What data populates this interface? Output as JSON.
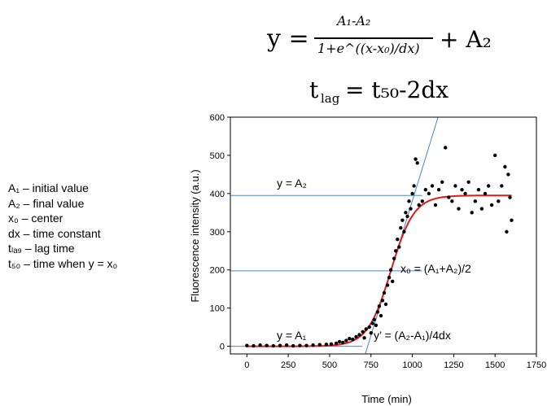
{
  "equations": {
    "sigmoid": {
      "lhs": "y =",
      "numerator": "A₁-A₂",
      "denominator": "1+e^((x-x₀)/dx)",
      "rhs": "+ A₂"
    },
    "lag": {
      "lhs": "t",
      "lhs_sub": "lag",
      "rhs": "= t₅₀-2dx"
    }
  },
  "legend_lines": [
    "A₁ – initial value",
    "A₂ – final value",
    "x₀ – center",
    "dx – time constant",
    "tₗₐ₉ – lag time",
    "t₅₀ – time when y = x₀"
  ],
  "annotations": {
    "plateau_high": "y = A₂",
    "plateau_low": "y = A₁",
    "center": "x₀ = (A₁+A₂)/2",
    "slope": "y’ = (A₂-A₁)/4dx"
  },
  "chart_data": {
    "type": "scatter",
    "xlabel": "Time (min)",
    "ylabel": "Fluorescence intensity (a.u.)",
    "xlim": [
      -100,
      1750
    ],
    "ylim": [
      -20,
      600
    ],
    "x_ticks": [
      0,
      250,
      500,
      750,
      1000,
      1250,
      1500,
      1750
    ],
    "y_ticks": [
      0,
      100,
      200,
      300,
      400,
      500,
      600
    ],
    "fit": {
      "A1": 0,
      "A2": 395,
      "x0": 870,
      "dx": 70
    },
    "reference_lines": {
      "horizontal": [
        0,
        197.5,
        395
      ],
      "tangent_point": [
        870,
        197.5
      ]
    },
    "series": [
      {
        "style": "points",
        "points": [
          [
            0,
            2
          ],
          [
            40,
            1
          ],
          [
            80,
            3
          ],
          [
            120,
            2
          ],
          [
            160,
            1
          ],
          [
            200,
            2
          ],
          [
            240,
            3
          ],
          [
            280,
            1
          ],
          [
            320,
            2
          ],
          [
            360,
            2
          ],
          [
            400,
            3
          ],
          [
            440,
            4
          ],
          [
            480,
            5
          ],
          [
            510,
            6
          ],
          [
            540,
            8
          ],
          [
            560,
            12
          ],
          [
            580,
            10
          ],
          [
            600,
            15
          ],
          [
            620,
            20
          ],
          [
            640,
            18
          ],
          [
            660,
            25
          ],
          [
            680,
            30
          ],
          [
            700,
            38
          ],
          [
            710,
            22
          ],
          [
            720,
            45
          ],
          [
            740,
            50
          ],
          [
            750,
            35
          ],
          [
            760,
            60
          ],
          [
            770,
            70
          ],
          [
            780,
            55
          ],
          [
            790,
            90
          ],
          [
            800,
            105
          ],
          [
            810,
            80
          ],
          [
            820,
            120
          ],
          [
            830,
            140
          ],
          [
            840,
            110
          ],
          [
            850,
            160
          ],
          [
            860,
            180
          ],
          [
            870,
            200
          ],
          [
            880,
            170
          ],
          [
            890,
            230
          ],
          [
            900,
            250
          ],
          [
            910,
            280
          ],
          [
            920,
            260
          ],
          [
            930,
            310
          ],
          [
            940,
            330
          ],
          [
            950,
            300
          ],
          [
            960,
            350
          ],
          [
            970,
            340
          ],
          [
            980,
            380
          ],
          [
            990,
            360
          ],
          [
            1000,
            400
          ],
          [
            1010,
            420
          ],
          [
            1020,
            490
          ],
          [
            1030,
            480
          ],
          [
            1040,
            370
          ],
          [
            1060,
            380
          ],
          [
            1080,
            410
          ],
          [
            1100,
            400
          ],
          [
            1120,
            420
          ],
          [
            1140,
            370
          ],
          [
            1160,
            410
          ],
          [
            1180,
            430
          ],
          [
            1200,
            520
          ],
          [
            1220,
            390
          ],
          [
            1240,
            380
          ],
          [
            1260,
            420
          ],
          [
            1280,
            360
          ],
          [
            1300,
            410
          ],
          [
            1320,
            400
          ],
          [
            1340,
            430
          ],
          [
            1360,
            350
          ],
          [
            1380,
            380
          ],
          [
            1400,
            410
          ],
          [
            1420,
            360
          ],
          [
            1440,
            400
          ],
          [
            1460,
            420
          ],
          [
            1480,
            370
          ],
          [
            1500,
            500
          ],
          [
            1520,
            380
          ],
          [
            1540,
            420
          ],
          [
            1560,
            470
          ],
          [
            1570,
            300
          ],
          [
            1580,
            450
          ],
          [
            1590,
            390
          ],
          [
            1600,
            330
          ]
        ]
      },
      {
        "style": "fit_line",
        "color": "#e31a1c"
      }
    ],
    "colors": {
      "points": "#000000",
      "fit": "#e31a1c",
      "guides": "#4a86c5"
    }
  }
}
